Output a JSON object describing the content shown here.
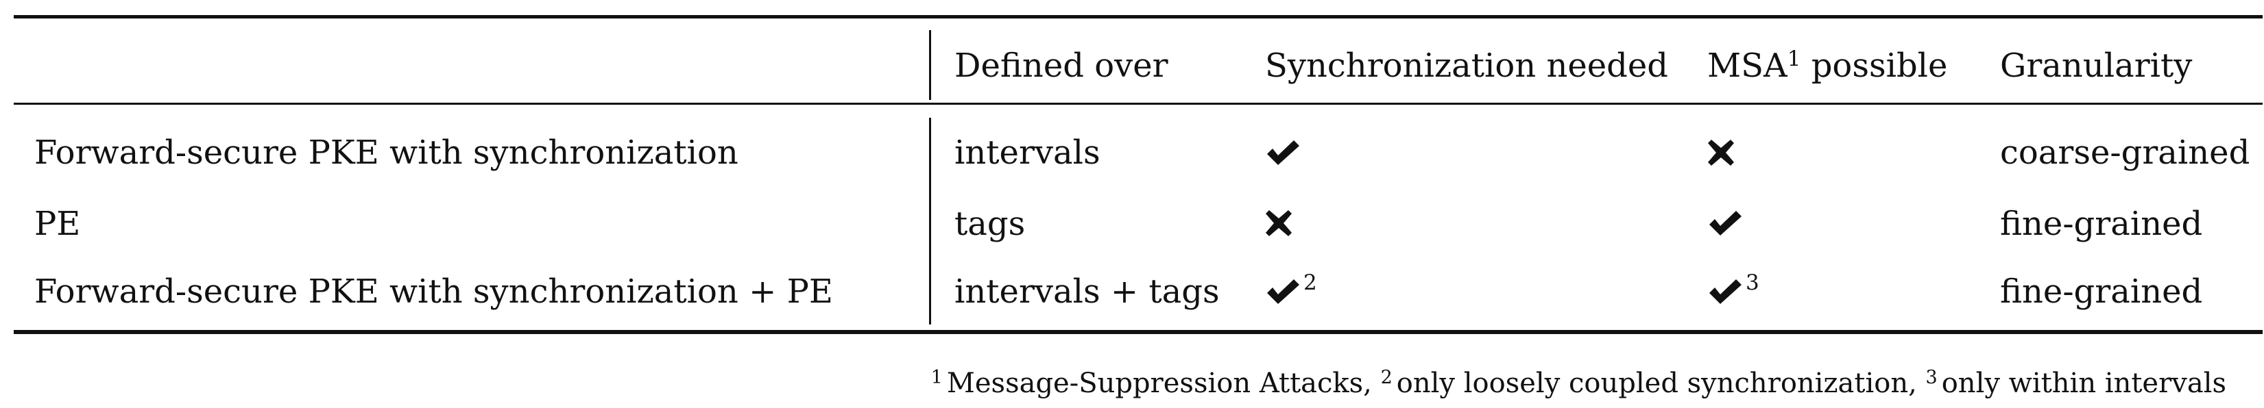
{
  "table": {
    "columns": [
      "Defined over",
      "Synchronization needed",
      "MSA",
      "possible",
      "Granularity"
    ],
    "msa_footnote_ref": "1",
    "rows": [
      {
        "label": "Forward-secure PKE with synchronization",
        "defined_over": "intervals",
        "sync_needed": {
          "mark": "check-icon",
          "note": ""
        },
        "msa_possible": {
          "mark": "cross-icon",
          "note": ""
        },
        "granularity": "coarse-grained"
      },
      {
        "label": "PE",
        "defined_over": "tags",
        "sync_needed": {
          "mark": "cross-icon",
          "note": ""
        },
        "msa_possible": {
          "mark": "check-icon",
          "note": ""
        },
        "granularity": "fine-grained"
      },
      {
        "label": "Forward-secure PKE with synchronization + PE",
        "defined_over": "intervals + tags",
        "sync_needed": {
          "mark": "check-icon",
          "note": "2"
        },
        "msa_possible": {
          "mark": "check-icon",
          "note": "3"
        },
        "granularity": "fine-grained"
      }
    ]
  },
  "footnotes": [
    {
      "num": "1",
      "text": "Message-Suppression Attacks,"
    },
    {
      "num": "2",
      "text": "only loosely coupled synchronization,"
    },
    {
      "num": "3",
      "text": "only within intervals"
    }
  ]
}
